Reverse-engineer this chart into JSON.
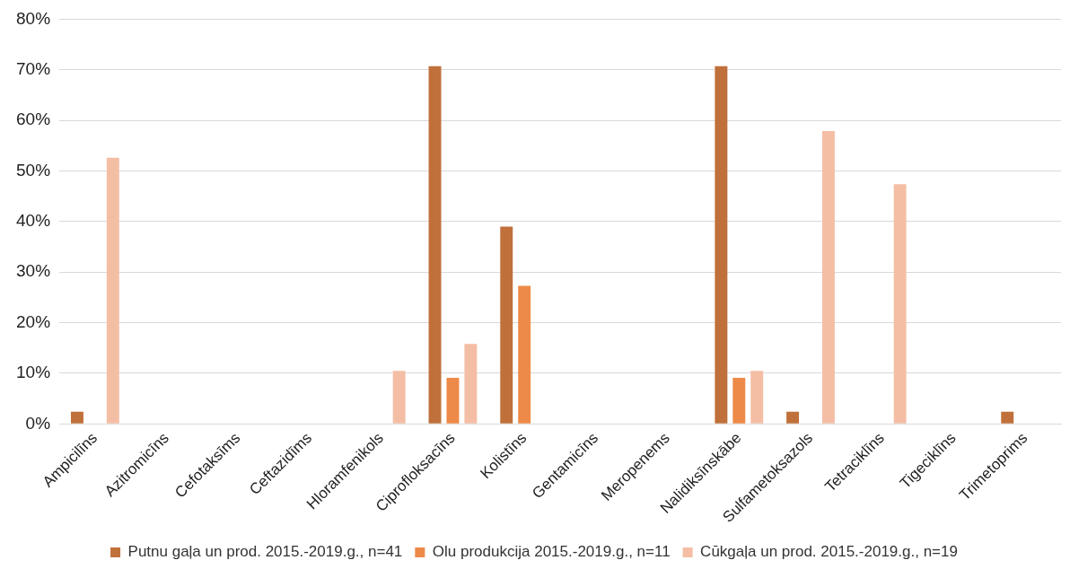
{
  "chart_data": {
    "type": "bar",
    "categories": [
      "Ampicilīns",
      "Azitromicīns",
      "Cefotaksīms",
      "Ceftazidīms",
      "Hloramfenikols",
      "Ciprofloksacīns",
      "Kolistīns",
      "Gentamicīns",
      "Meropenems",
      "Nalidiksīnskābe",
      "Sulfametoksazols",
      "Tetraciklīns",
      "Tigeciklīns",
      "Trimetoprims"
    ],
    "series": [
      {
        "name": "Putnu gaļa un prod. 2015.-2019.g., n=41",
        "color": "#c0703a",
        "values": [
          2.4,
          0,
          0,
          0,
          0,
          70.7,
          39.0,
          0,
          0,
          70.7,
          2.4,
          0,
          0,
          2.4
        ]
      },
      {
        "name": "Olu produkcija 2015.-2019.g., n=11",
        "color": "#ee8a48",
        "values": [
          0,
          0,
          0,
          0,
          0,
          9.1,
          27.3,
          0,
          0,
          9.1,
          0,
          0,
          0,
          0
        ]
      },
      {
        "name": "Cūkgaļa un prod. 2015.-2019.g., n=19",
        "color": "#f4bea5",
        "values": [
          52.6,
          0,
          0,
          0,
          10.5,
          15.8,
          0,
          0,
          0,
          10.5,
          57.9,
          47.4,
          0,
          0
        ]
      }
    ],
    "ylim": [
      0,
      80
    ],
    "yticks": [
      {
        "value": 0,
        "label": "0%"
      },
      {
        "value": 10,
        "label": "10%"
      },
      {
        "value": 20,
        "label": "20%"
      },
      {
        "value": 30,
        "label": "30%"
      },
      {
        "value": 40,
        "label": "40%"
      },
      {
        "value": 50,
        "label": "50%"
      },
      {
        "value": 60,
        "label": "60%"
      },
      {
        "value": 70,
        "label": "70%"
      },
      {
        "value": 80,
        "label": "80%"
      }
    ],
    "grid": "y",
    "legend": "bottom"
  }
}
